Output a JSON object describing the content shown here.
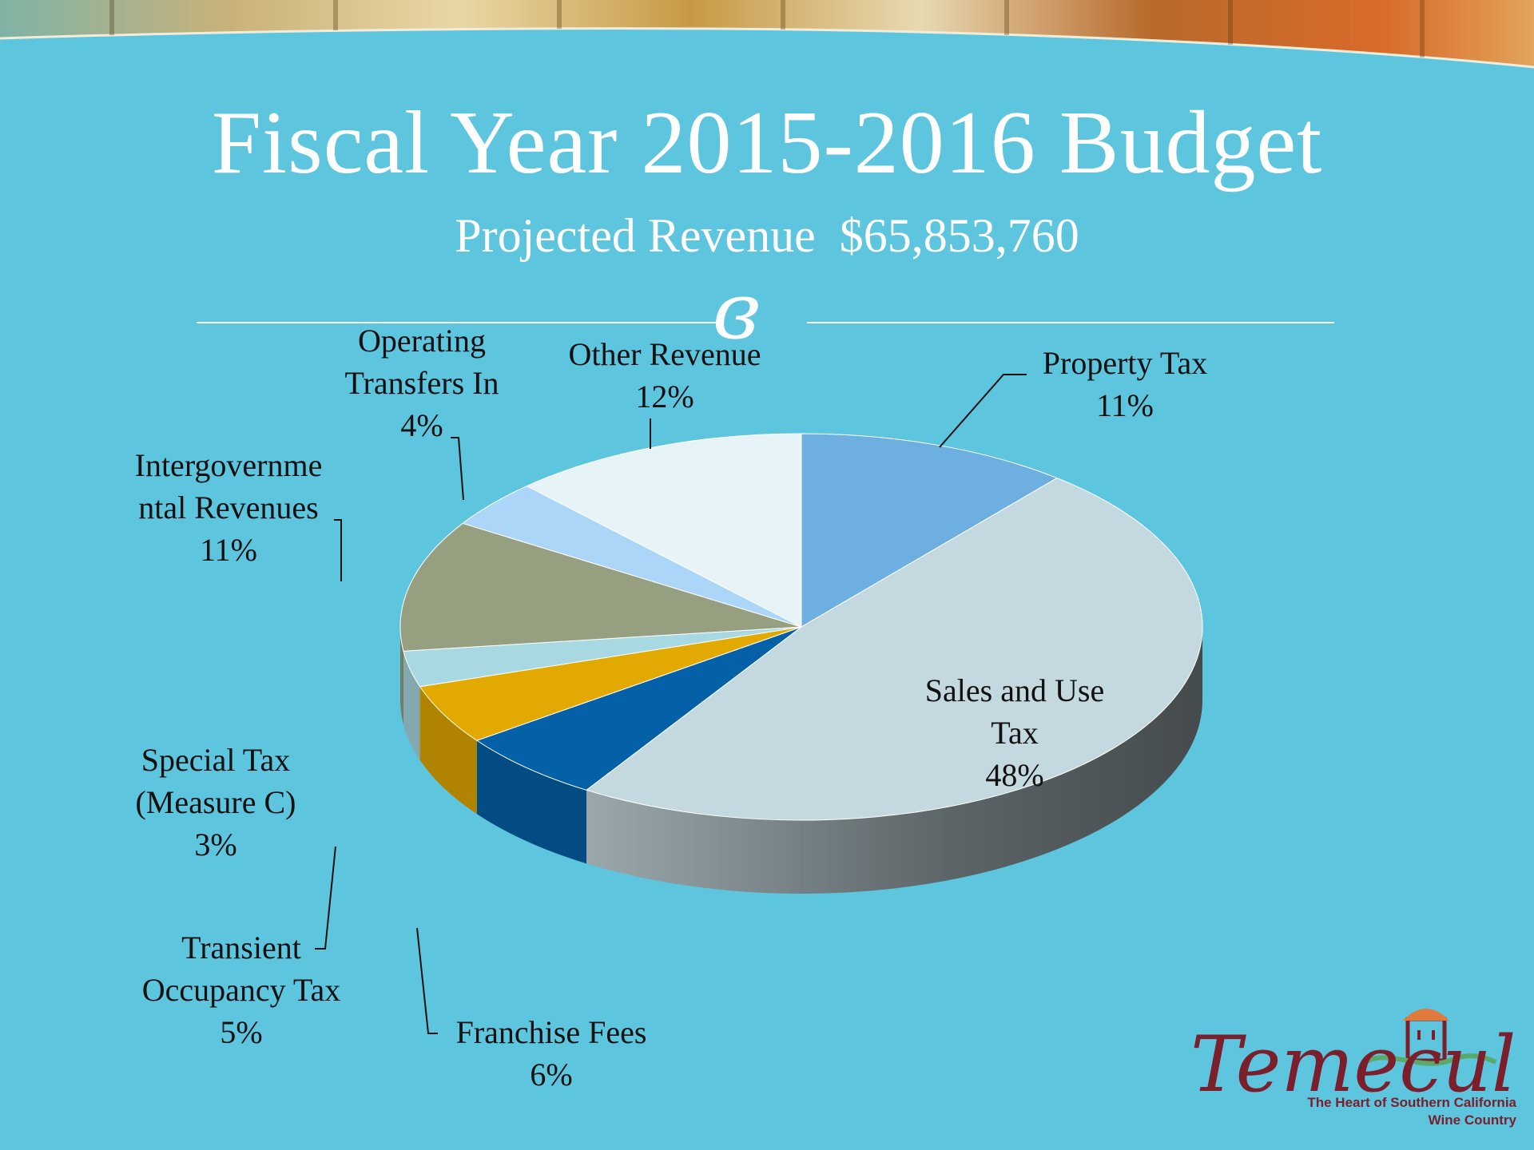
{
  "slide": {
    "title": "Fiscal Year 2015-2016 Budget",
    "subtitle_label": "Projected Revenue",
    "subtitle_amount": "$65,853,760",
    "flourish": "ɞ",
    "colors": {
      "background": "#5ec5de",
      "text": "#ffffff"
    }
  },
  "chart_data": {
    "type": "pie",
    "title": "",
    "style": "3d",
    "slices": [
      {
        "label": "Property Tax",
        "value": 11,
        "value_label": "11%",
        "color": "#6dafe0"
      },
      {
        "label": "Sales and Use Tax",
        "value": 48,
        "value_label": "48%",
        "color": "#c4d9df"
      },
      {
        "label": "Franchise Fees",
        "value": 6,
        "value_label": "6%",
        "color": "#0461a8"
      },
      {
        "label": "Transient Occupancy Tax",
        "value": 5,
        "value_label": "5%",
        "color": "#e2a900"
      },
      {
        "label": "Special Tax (Measure C)",
        "value": 3,
        "value_label": "3%",
        "color": "#a8d8e2"
      },
      {
        "label": "Intergovernmental Revenues",
        "value": 11,
        "value_label": "11%",
        "color": "#969f80"
      },
      {
        "label": "Operating Transfers In",
        "value": 4,
        "value_label": "4%",
        "color": "#acd6f8"
      },
      {
        "label": "Other Revenue",
        "value": 12,
        "value_label": "12%",
        "color": "#e6f4f8"
      }
    ],
    "label_lines": {
      "Property Tax": [
        "Property Tax"
      ],
      "Sales and Use Tax": [
        "Sales and Use",
        "Tax"
      ],
      "Franchise Fees": [
        "Franchise Fees"
      ],
      "Transient Occupancy Tax": [
        "Transient",
        "Occupancy Tax"
      ],
      "Special Tax (Measure C)": [
        "Special Tax",
        "(Measure C)"
      ],
      "Intergovernmental Revenues": [
        "Intergovernme",
        "ntal Revenues"
      ],
      "Operating Transfers In": [
        "Operating",
        "Transfers In"
      ],
      "Other Revenue": [
        "Other Revenue"
      ]
    }
  },
  "logo": {
    "wordmark": "Temecula",
    "tagline_1": "The Heart of Southern California",
    "tagline_2": "Wine Country",
    "colors": {
      "wordmark": "#7a1f2b",
      "roof": "#e07b3c",
      "wave": "#5aa96a"
    }
  }
}
